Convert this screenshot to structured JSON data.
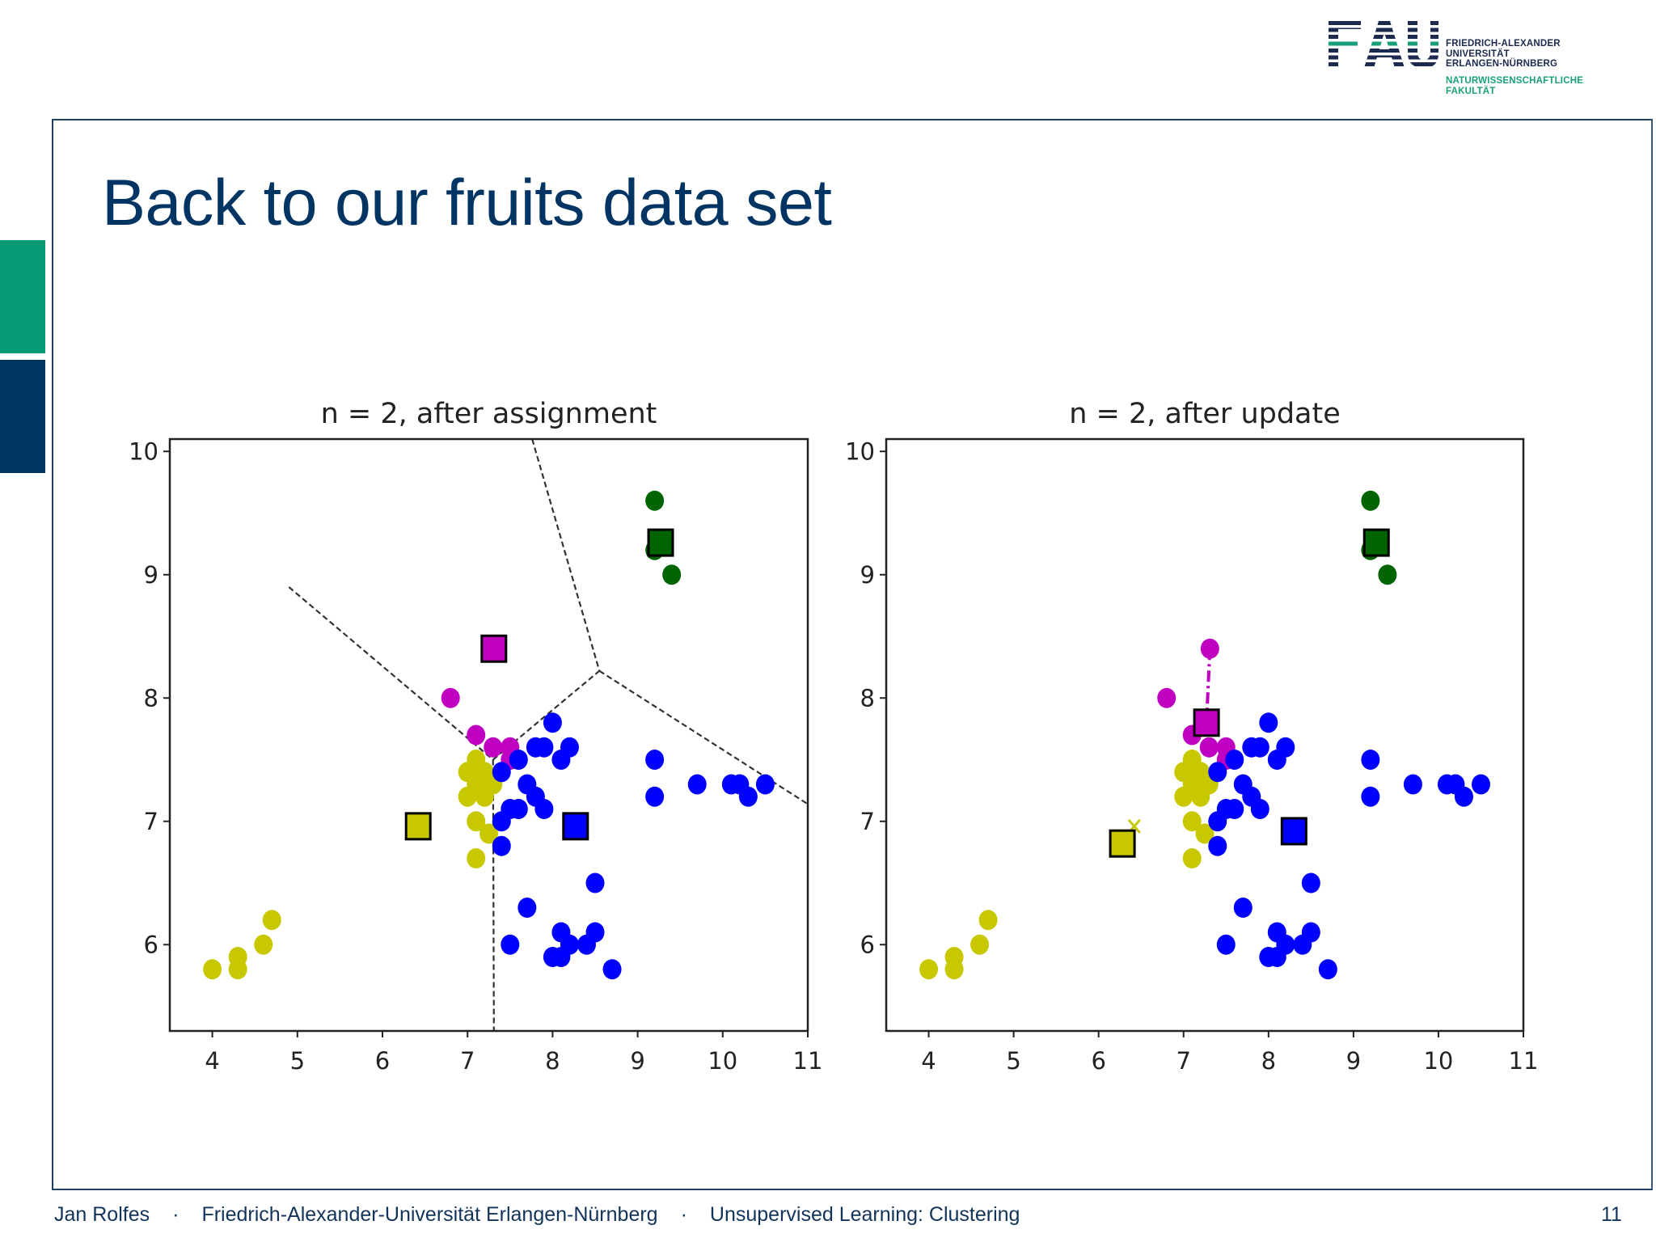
{
  "slide": {
    "title": "Back to our fruits data set",
    "page_number": "11"
  },
  "logo": {
    "mark": "FAU",
    "lines": [
      "FRIEDRICH-ALEXANDER",
      "UNIVERSITÄT",
      "ERLANGEN-NÜRNBERG"
    ],
    "faculty_lines": [
      "NATURWISSENSCHAFTLICHE",
      "FAKULTÄT"
    ],
    "colors": {
      "navy": "#1b2a4e",
      "green": "#18a07a"
    }
  },
  "footer": {
    "author": "Jan Rolfes",
    "separator": "·",
    "institution": "Friedrich-Alexander-Universität Erlangen-Nürnberg",
    "course": "Unsupervised Learning: Clustering"
  },
  "colors": {
    "accent_green": "#069a75",
    "accent_blue": "#003560",
    "title": "#003463",
    "cluster_yellow": "#c8c800",
    "cluster_magenta": "#c000c0",
    "cluster_blue": "#0000ff",
    "cluster_green": "#006400"
  },
  "chart_data": [
    {
      "type": "scatter",
      "title": "n = 2, after assignment",
      "xlabel": "",
      "ylabel": "",
      "xlim": [
        3.5,
        11
      ],
      "ylim": [
        5.3,
        10.1
      ],
      "xticks": [
        4,
        5,
        6,
        7,
        8,
        9,
        10,
        11
      ],
      "yticks": [
        6,
        7,
        8,
        9,
        10
      ],
      "grid": false,
      "series": [
        {
          "name": "cluster yellow",
          "color": "#c8c800",
          "marker": "circle",
          "points": [
            [
              4.0,
              5.8
            ],
            [
              4.3,
              5.8
            ],
            [
              4.3,
              5.9
            ],
            [
              4.6,
              6.0
            ],
            [
              4.7,
              6.2
            ],
            [
              7.1,
              6.7
            ],
            [
              7.1,
              7.0
            ],
            [
              7.25,
              6.9
            ],
            [
              7.0,
              7.2
            ],
            [
              7.2,
              7.2
            ],
            [
              7.0,
              7.4
            ],
            [
              7.2,
              7.4
            ],
            [
              7.1,
              7.5
            ],
            [
              7.3,
              7.3
            ],
            [
              7.1,
              7.3
            ]
          ]
        },
        {
          "name": "cluster magenta",
          "color": "#c000c0",
          "marker": "circle",
          "points": [
            [
              6.8,
              8.0
            ],
            [
              7.1,
              7.7
            ],
            [
              7.3,
              7.6
            ],
            [
              7.5,
              7.6
            ],
            [
              7.5,
              7.5
            ]
          ]
        },
        {
          "name": "cluster blue",
          "color": "#0000ff",
          "marker": "circle",
          "points": [
            [
              7.4,
              7.4
            ],
            [
              7.4,
              7.0
            ],
            [
              7.4,
              6.8
            ],
            [
              7.5,
              7.1
            ],
            [
              7.6,
              7.1
            ],
            [
              7.7,
              7.3
            ],
            [
              7.8,
              7.2
            ],
            [
              7.9,
              7.1
            ],
            [
              7.6,
              7.5
            ],
            [
              7.8,
              7.6
            ],
            [
              7.9,
              7.6
            ],
            [
              8.0,
              7.8
            ],
            [
              8.1,
              7.5
            ],
            [
              8.2,
              7.6
            ],
            [
              9.2,
              7.5
            ],
            [
              9.2,
              7.2
            ],
            [
              9.7,
              7.3
            ],
            [
              10.1,
              7.3
            ],
            [
              10.2,
              7.3
            ],
            [
              10.3,
              7.2
            ],
            [
              10.5,
              7.3
            ],
            [
              8.5,
              6.5
            ],
            [
              7.7,
              6.3
            ],
            [
              7.5,
              6.0
            ],
            [
              8.1,
              6.1
            ],
            [
              8.5,
              6.1
            ],
            [
              8.4,
              6.0
            ],
            [
              8.2,
              6.0
            ],
            [
              8.0,
              5.9
            ],
            [
              8.1,
              5.9
            ],
            [
              8.7,
              5.8
            ]
          ]
        },
        {
          "name": "cluster green",
          "color": "#006400",
          "marker": "circle",
          "points": [
            [
              9.2,
              9.6
            ],
            [
              9.2,
              9.2
            ],
            [
              9.4,
              9.0
            ]
          ]
        }
      ],
      "centroids": [
        {
          "color": "#c8c800",
          "x": 6.42,
          "y": 6.96
        },
        {
          "color": "#c000c0",
          "x": 7.31,
          "y": 8.4
        },
        {
          "color": "#0000ff",
          "x": 8.27,
          "y": 6.96
        },
        {
          "color": "#006400",
          "x": 9.27,
          "y": 9.26
        }
      ],
      "voronoi_edges": [
        [
          [
            4.9,
            8.9
          ],
          [
            7.3,
            7.5
          ]
        ],
        [
          [
            7.3,
            7.5
          ],
          [
            7.31,
            5.3
          ]
        ],
        [
          [
            7.3,
            7.5
          ],
          [
            8.55,
            8.22
          ]
        ],
        [
          [
            7.76,
            10.1
          ],
          [
            8.55,
            8.22
          ]
        ],
        [
          [
            8.55,
            8.22
          ],
          [
            11.0,
            7.14
          ]
        ]
      ]
    },
    {
      "type": "scatter",
      "title": "n = 2, after update",
      "xlabel": "",
      "ylabel": "",
      "xlim": [
        3.5,
        11
      ],
      "ylim": [
        5.3,
        10.1
      ],
      "xticks": [
        4,
        5,
        6,
        7,
        8,
        9,
        10,
        11
      ],
      "yticks": [
        6,
        7,
        8,
        9,
        10
      ],
      "grid": false,
      "series": [
        {
          "name": "cluster yellow",
          "color": "#c8c800",
          "marker": "circle",
          "points": [
            [
              4.0,
              5.8
            ],
            [
              4.3,
              5.8
            ],
            [
              4.3,
              5.9
            ],
            [
              4.6,
              6.0
            ],
            [
              4.7,
              6.2
            ],
            [
              7.1,
              6.7
            ],
            [
              7.1,
              7.0
            ],
            [
              7.25,
              6.9
            ],
            [
              7.0,
              7.2
            ],
            [
              7.2,
              7.2
            ],
            [
              7.0,
              7.4
            ],
            [
              7.2,
              7.4
            ],
            [
              7.1,
              7.5
            ],
            [
              7.3,
              7.3
            ],
            [
              7.1,
              7.3
            ]
          ]
        },
        {
          "name": "cluster magenta",
          "color": "#c000c0",
          "marker": "circle",
          "points": [
            [
              6.8,
              8.0
            ],
            [
              7.1,
              7.7
            ],
            [
              7.3,
              7.6
            ],
            [
              7.5,
              7.6
            ],
            [
              7.5,
              7.5
            ]
          ]
        },
        {
          "name": "cluster blue",
          "color": "#0000ff",
          "marker": "circle",
          "points": [
            [
              7.4,
              7.4
            ],
            [
              7.4,
              7.0
            ],
            [
              7.4,
              6.8
            ],
            [
              7.5,
              7.1
            ],
            [
              7.6,
              7.1
            ],
            [
              7.7,
              7.3
            ],
            [
              7.8,
              7.2
            ],
            [
              7.9,
              7.1
            ],
            [
              7.6,
              7.5
            ],
            [
              7.8,
              7.6
            ],
            [
              7.9,
              7.6
            ],
            [
              8.0,
              7.8
            ],
            [
              8.1,
              7.5
            ],
            [
              8.2,
              7.6
            ],
            [
              9.2,
              7.5
            ],
            [
              9.2,
              7.2
            ],
            [
              9.7,
              7.3
            ],
            [
              10.1,
              7.3
            ],
            [
              10.2,
              7.3
            ],
            [
              10.3,
              7.2
            ],
            [
              10.5,
              7.3
            ],
            [
              8.5,
              6.5
            ],
            [
              7.7,
              6.3
            ],
            [
              7.5,
              6.0
            ],
            [
              8.1,
              6.1
            ],
            [
              8.5,
              6.1
            ],
            [
              8.4,
              6.0
            ],
            [
              8.2,
              6.0
            ],
            [
              8.0,
              5.9
            ],
            [
              8.1,
              5.9
            ],
            [
              8.7,
              5.8
            ]
          ]
        },
        {
          "name": "cluster green",
          "color": "#006400",
          "marker": "circle",
          "points": [
            [
              9.2,
              9.6
            ],
            [
              9.2,
              9.2
            ],
            [
              9.4,
              9.0
            ]
          ]
        }
      ],
      "previous_centroids": [
        {
          "color": "#c8c800",
          "x": 6.42,
          "y": 6.96,
          "marker": "x"
        },
        {
          "color": "#c000c0",
          "x": 7.31,
          "y": 8.4,
          "marker": "circle"
        }
      ],
      "centroids": [
        {
          "color": "#c8c800",
          "x": 6.28,
          "y": 6.82
        },
        {
          "color": "#c000c0",
          "x": 7.27,
          "y": 7.8
        },
        {
          "color": "#0000ff",
          "x": 8.3,
          "y": 6.92
        },
        {
          "color": "#006400",
          "x": 9.27,
          "y": 9.26
        }
      ],
      "movement_lines": [
        {
          "color": "#c000c0",
          "from": [
            7.31,
            8.4
          ],
          "to": [
            7.27,
            7.8
          ]
        }
      ]
    }
  ]
}
